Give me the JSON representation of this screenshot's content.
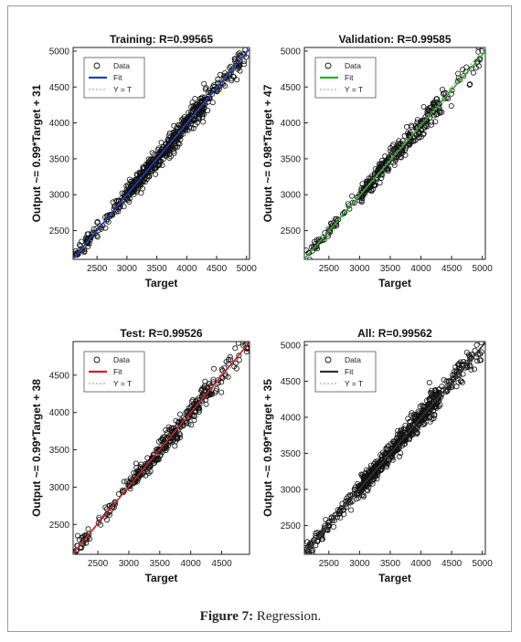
{
  "caption": {
    "label": "Figure 7:",
    "text": "Regression."
  },
  "chart_data": [
    {
      "type": "scatter",
      "title": "Training: R=0.99565",
      "xlabel": "Target",
      "ylabel": "Output ~= 0.99*Target + 31",
      "xlim": [
        2100,
        5050
      ],
      "ylim": [
        2100,
        5050
      ],
      "xticks": [
        2500,
        3000,
        3500,
        4000,
        4500,
        5000
      ],
      "yticks": [
        2500,
        3000,
        3500,
        4000,
        4500,
        5000
      ],
      "fit": {
        "slope": 0.99,
        "intercept": 31,
        "color": "#1f3fbf"
      },
      "data_range": [
        2150,
        5000
      ],
      "legend": {
        "position": "top-left",
        "entries": [
          "Data",
          "Fit",
          "Y = T"
        ]
      }
    },
    {
      "type": "scatter",
      "title": "Validation: R=0.99585",
      "xlabel": "Target",
      "ylabel": "Output ~= 0.98*Target + 47",
      "xlim": [
        2100,
        5050
      ],
      "ylim": [
        2100,
        5050
      ],
      "xticks": [
        2500,
        3000,
        3500,
        4000,
        4500,
        5000
      ],
      "yticks": [
        2500,
        3000,
        3500,
        4000,
        4500,
        5000
      ],
      "fit": {
        "slope": 0.98,
        "intercept": 47,
        "color": "#2bb02b"
      },
      "data_range": [
        2150,
        5000
      ],
      "legend": {
        "position": "top-left",
        "entries": [
          "Data",
          "Fit",
          "Y = T"
        ]
      }
    },
    {
      "type": "scatter",
      "title": "Test: R=0.99526",
      "xlabel": "Target",
      "ylabel": "Output ~= 0.99*Target + 38",
      "xlim": [
        2100,
        4950
      ],
      "ylim": [
        2100,
        4950
      ],
      "xticks": [
        2500,
        3000,
        3500,
        4000,
        4500
      ],
      "yticks": [
        2500,
        3000,
        3500,
        4000,
        4500
      ],
      "fit": {
        "slope": 0.99,
        "intercept": 38,
        "color": "#cc2222"
      },
      "data_range": [
        2150,
        4950
      ],
      "legend": {
        "position": "top-left",
        "entries": [
          "Data",
          "Fit",
          "Y = T"
        ]
      }
    },
    {
      "type": "scatter",
      "title": "All: R=0.99562",
      "xlabel": "Target",
      "ylabel": "Output ~= 0.99*Target + 35",
      "xlim": [
        2100,
        5050
      ],
      "ylim": [
        2100,
        5050
      ],
      "xticks": [
        2500,
        3000,
        3500,
        4000,
        4500,
        5000
      ],
      "yticks": [
        2500,
        3000,
        3500,
        4000,
        4500,
        5000
      ],
      "fit": {
        "slope": 0.99,
        "intercept": 35,
        "color": "#333333"
      },
      "data_range": [
        2150,
        5000
      ],
      "legend": {
        "position": "top-left",
        "entries": [
          "Data",
          "Fit",
          "Y = T"
        ]
      }
    }
  ]
}
